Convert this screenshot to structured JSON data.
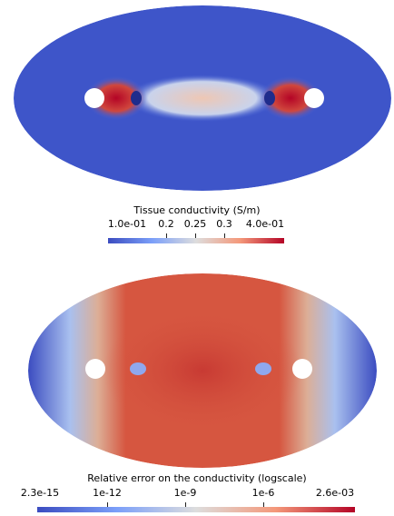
{
  "top": {
    "colorbar_title": "Tissue conductivity (S/m)",
    "ticks": [
      "1.0e-01",
      "0.2",
      "0.25",
      "0.3",
      "4.0e-01"
    ],
    "colors": {
      "low": "#3b4cc0",
      "mid": "#dddddd",
      "high": "#b40426"
    }
  },
  "bottom": {
    "colorbar_title": "Relative error on the conductivity (logscale)",
    "ticks": [
      "2.3e-15",
      "1e-12",
      "1e-9",
      "1e-6",
      "2.6e-03"
    ],
    "colors": {
      "low": "#3b4cc0",
      "mid": "#dddddd",
      "high": "#b40426"
    }
  }
}
